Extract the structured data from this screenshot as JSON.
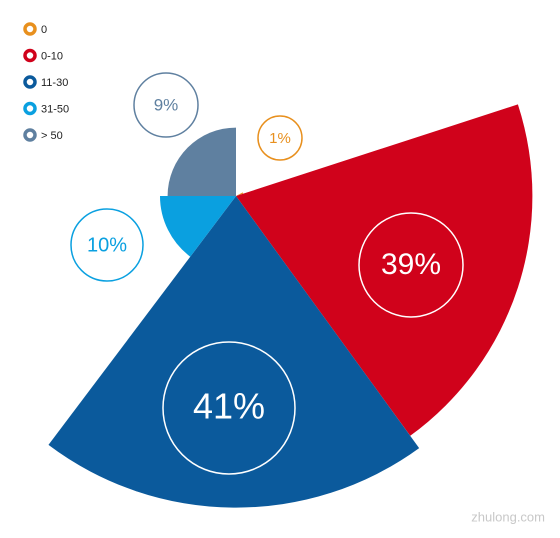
{
  "chart_data": {
    "type": "polar",
    "categories": [
      "0",
      "0-10",
      "11-30",
      "31-50",
      "> 50"
    ],
    "values": [
      1,
      39,
      41,
      10,
      9
    ],
    "value_labels": [
      "1%",
      "39%",
      "41%",
      "10%",
      "9%"
    ],
    "colors": [
      "#e8901e",
      "#d0021b",
      "#0b5a9c",
      "#0aa0e0",
      "#5f80a0"
    ],
    "legend": "top-left",
    "watermark": "zhulong.com"
  }
}
